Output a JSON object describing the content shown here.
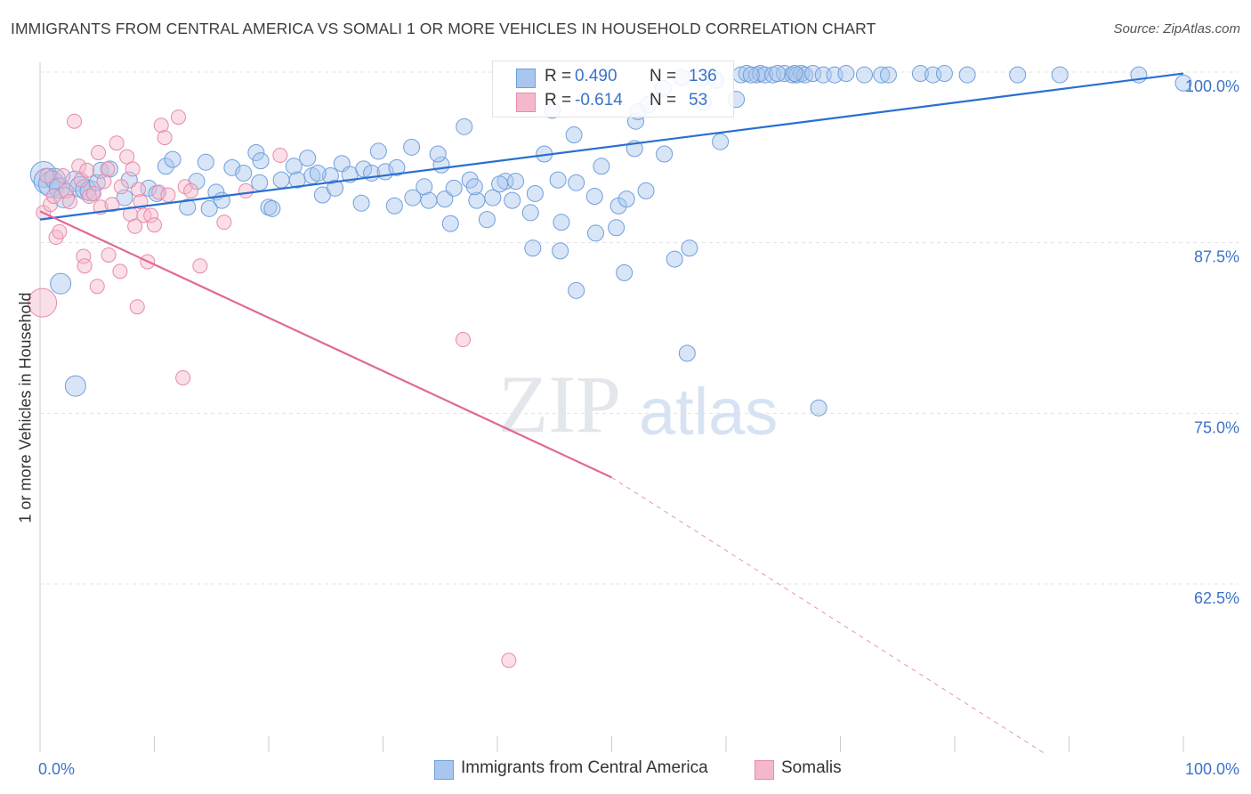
{
  "header": {
    "title": "IMMIGRANTS FROM CENTRAL AMERICA VS SOMALI 1 OR MORE VEHICLES IN HOUSEHOLD CORRELATION CHART",
    "source": "Source: ZipAtlas.com"
  },
  "watermark": {
    "zip": "ZIP",
    "atlas": "atlas"
  },
  "legend": {
    "r_label": "R =",
    "n_label": "N =",
    "series": [
      {
        "name": "Immigrants from Central America",
        "r": "0.490",
        "n": "136"
      },
      {
        "name": "Somalis",
        "r": "-0.614",
        "n": "53"
      }
    ]
  },
  "colors": {
    "blue_fill": "#a9c6ee",
    "blue_stroke": "#6f9fdc",
    "blue_line": "#2a6fd0",
    "pink_fill": "#f5b8cb",
    "pink_stroke": "#e88aa8",
    "pink_line": "#e06a96",
    "tick_label": "#3b73c9",
    "grid": "#dde3ea"
  },
  "chart_data": {
    "type": "scatter",
    "title": "IMMIGRANTS FROM CENTRAL AMERICA VS SOMALI 1 OR MORE VEHICLES IN HOUSEHOLD CORRELATION CHART",
    "xlabel": "",
    "ylabel": "1 or more Vehicles in Household",
    "x_tick_labels": [
      "0.0%",
      "100.0%"
    ],
    "y_tick_labels": [
      "100.0%",
      "87.5%",
      "75.0%",
      "62.5%"
    ],
    "y_ticks": [
      100.0,
      87.5,
      75.0,
      62.5
    ],
    "xlim": [
      0,
      100
    ],
    "ylim": [
      50.0,
      101.5
    ],
    "grid": true,
    "legend_position": "top-center",
    "series": [
      {
        "name": "Immigrants from Central America",
        "trend": {
          "x": [
            0,
            100
          ],
          "y": [
            89.2,
            99.9
          ]
        },
        "points": [
          [
            0.3,
            92.5,
            3
          ],
          [
            0.6,
            92.0,
            3
          ],
          [
            1.0,
            91.8,
            3
          ],
          [
            1.3,
            92.2,
            2
          ],
          [
            1.7,
            91.5,
            2
          ],
          [
            2.1,
            90.8,
            2
          ],
          [
            3.1,
            92.0,
            2
          ],
          [
            3.5,
            91.6,
            2
          ],
          [
            4.0,
            91.4,
            2
          ],
          [
            4.4,
            91.3,
            2
          ],
          [
            5.0,
            91.9,
            1
          ],
          [
            5.3,
            92.8,
            1
          ],
          [
            6.1,
            92.9,
            1
          ],
          [
            7.8,
            92.1,
            1
          ],
          [
            7.4,
            90.8,
            1
          ],
          [
            9.5,
            91.5,
            1
          ],
          [
            10.2,
            91.1,
            1
          ],
          [
            11.0,
            93.1,
            1
          ],
          [
            11.6,
            93.6,
            1
          ],
          [
            12.9,
            90.1,
            1
          ],
          [
            13.7,
            92.0,
            1
          ],
          [
            14.5,
            93.4,
            1
          ],
          [
            15.4,
            91.2,
            1
          ],
          [
            15.9,
            90.6,
            1
          ],
          [
            16.8,
            93.0,
            1
          ],
          [
            17.8,
            92.6,
            1
          ],
          [
            18.9,
            94.1,
            1
          ],
          [
            19.3,
            93.5,
            1
          ],
          [
            20.0,
            90.1,
            1
          ],
          [
            20.3,
            90.0,
            1
          ],
          [
            21.1,
            92.1,
            1
          ],
          [
            22.2,
            93.1,
            1
          ],
          [
            22.5,
            92.1,
            1
          ],
          [
            23.4,
            93.7,
            1
          ],
          [
            23.8,
            92.4,
            1
          ],
          [
            24.7,
            91.0,
            1
          ],
          [
            25.4,
            92.4,
            1
          ],
          [
            25.8,
            91.5,
            1
          ],
          [
            26.4,
            93.3,
            1
          ],
          [
            27.1,
            92.5,
            1
          ],
          [
            28.1,
            90.4,
            1
          ],
          [
            28.3,
            92.9,
            1
          ],
          [
            29.0,
            92.6,
            1
          ],
          [
            29.6,
            94.2,
            1
          ],
          [
            30.2,
            92.7,
            1
          ],
          [
            31.0,
            90.2,
            1
          ],
          [
            31.2,
            93.0,
            1
          ],
          [
            32.6,
            90.8,
            1
          ],
          [
            32.5,
            94.5,
            1
          ],
          [
            34.0,
            90.6,
            1
          ],
          [
            33.6,
            91.6,
            1
          ],
          [
            35.1,
            93.2,
            1
          ],
          [
            35.4,
            90.7,
            1
          ],
          [
            34.8,
            94.0,
            1
          ],
          [
            35.9,
            88.9,
            1
          ],
          [
            36.2,
            91.5,
            1
          ],
          [
            37.1,
            96.0,
            1
          ],
          [
            37.6,
            92.1,
            1
          ],
          [
            38.2,
            90.6,
            1
          ],
          [
            38.0,
            91.6,
            1
          ],
          [
            39.1,
            89.2,
            1
          ],
          [
            39.6,
            90.8,
            1
          ],
          [
            40.7,
            92.0,
            1
          ],
          [
            40.2,
            91.8,
            1
          ],
          [
            41.3,
            90.6,
            1
          ],
          [
            41.6,
            92.0,
            1
          ],
          [
            43.1,
            87.1,
            1
          ],
          [
            43.3,
            91.1,
            1
          ],
          [
            44.1,
            94.0,
            1
          ],
          [
            44.8,
            97.2,
            1
          ],
          [
            45.3,
            92.1,
            1
          ],
          [
            45.5,
            86.9,
            1
          ],
          [
            45.6,
            89.0,
            1
          ],
          [
            46.7,
            95.4,
            1
          ],
          [
            46.9,
            91.9,
            1
          ],
          [
            46.9,
            84.0,
            1
          ],
          [
            48.5,
            90.9,
            1
          ],
          [
            48.6,
            88.2,
            1
          ],
          [
            49.1,
            93.1,
            1
          ],
          [
            50.4,
            88.6,
            1
          ],
          [
            51.1,
            85.3,
            1
          ],
          [
            50.6,
            90.2,
            1
          ],
          [
            52.0,
            94.4,
            1
          ],
          [
            52.1,
            96.4,
            1
          ],
          [
            53.2,
            97.6,
            1
          ],
          [
            52.3,
            97.1,
            1
          ],
          [
            54.6,
            94.0,
            1
          ],
          [
            54.5,
            98.8,
            1
          ],
          [
            56.1,
            99.6,
            1
          ],
          [
            56.8,
            87.1,
            1
          ],
          [
            56.6,
            79.4,
            1
          ],
          [
            58.0,
            97.8,
            1
          ],
          [
            57.9,
            99.6,
            1
          ],
          [
            59.1,
            99.4,
            1
          ],
          [
            59.5,
            94.9,
            1
          ],
          [
            60.9,
            98.0,
            1
          ],
          [
            61.3,
            99.8,
            1
          ],
          [
            61.8,
            99.9,
            1
          ],
          [
            62.7,
            99.8,
            1
          ],
          [
            63.0,
            99.9,
            1
          ],
          [
            63.4,
            99.8,
            1
          ],
          [
            64.1,
            99.8,
            1
          ],
          [
            65.1,
            99.9,
            1
          ],
          [
            65.8,
            99.8,
            1
          ],
          [
            66.2,
            99.8,
            1
          ],
          [
            66.6,
            99.9,
            1
          ],
          [
            66.9,
            99.8,
            1
          ],
          [
            67.6,
            99.9,
            1
          ],
          [
            66.0,
            99.9,
            1
          ],
          [
            64.5,
            99.9,
            1
          ],
          [
            62.2,
            99.8,
            1
          ],
          [
            68.1,
            75.4,
            1
          ],
          [
            68.5,
            99.8,
            1
          ],
          [
            69.5,
            99.8,
            1
          ],
          [
            70.5,
            99.9,
            1
          ],
          [
            72.1,
            99.8,
            1
          ],
          [
            73.6,
            99.8,
            1
          ],
          [
            74.2,
            99.8,
            1
          ],
          [
            77.0,
            99.9,
            1
          ],
          [
            78.1,
            99.8,
            1
          ],
          [
            79.1,
            99.9,
            1
          ],
          [
            81.1,
            99.8,
            1
          ],
          [
            85.5,
            99.8,
            1
          ],
          [
            89.2,
            99.8,
            1
          ],
          [
            96.1,
            99.8,
            1
          ],
          [
            100.0,
            99.2,
            1
          ],
          [
            1.8,
            84.5,
            2
          ],
          [
            3.1,
            77.0,
            2
          ],
          [
            14.8,
            90.0,
            1
          ],
          [
            42.9,
            89.7,
            1
          ],
          [
            53.0,
            91.3,
            1
          ],
          [
            51.3,
            90.7,
            1
          ],
          [
            55.5,
            86.3,
            1
          ],
          [
            19.2,
            91.9,
            1
          ],
          [
            24.3,
            92.6,
            1
          ]
        ]
      },
      {
        "name": "Somalis",
        "trend": {
          "x": [
            0,
            50
          ],
          "y": [
            89.8,
            70.3
          ]
        },
        "trend_dashed": {
          "x": [
            50,
            88
          ],
          "y": [
            70.3,
            50.0
          ]
        },
        "points": [
          [
            0.2,
            83.1,
            4
          ],
          [
            0.3,
            89.7,
            1
          ],
          [
            0.6,
            92.4,
            1
          ],
          [
            0.9,
            90.3,
            1
          ],
          [
            1.2,
            90.9,
            1
          ],
          [
            1.4,
            87.9,
            1
          ],
          [
            1.7,
            88.3,
            1
          ],
          [
            2.0,
            92.4,
            1
          ],
          [
            2.3,
            91.3,
            1
          ],
          [
            2.6,
            90.5,
            1
          ],
          [
            3.0,
            96.4,
            1
          ],
          [
            3.4,
            93.1,
            1
          ],
          [
            3.6,
            92.1,
            1
          ],
          [
            3.8,
            86.5,
            1
          ],
          [
            4.1,
            92.8,
            1
          ],
          [
            4.3,
            90.9,
            1
          ],
          [
            4.7,
            91.1,
            1
          ],
          [
            5.1,
            94.1,
            1
          ],
          [
            5.3,
            90.1,
            1
          ],
          [
            5.6,
            92.0,
            1
          ],
          [
            5.9,
            92.9,
            1
          ],
          [
            6.0,
            86.6,
            1
          ],
          [
            6.3,
            90.3,
            1
          ],
          [
            6.7,
            94.8,
            1
          ],
          [
            7.1,
            91.6,
            1
          ],
          [
            7.6,
            93.8,
            1
          ],
          [
            7.9,
            89.6,
            1
          ],
          [
            8.1,
            92.9,
            1
          ],
          [
            8.3,
            88.7,
            1
          ],
          [
            8.6,
            91.4,
            1
          ],
          [
            8.8,
            90.5,
            1
          ],
          [
            9.1,
            89.5,
            1
          ],
          [
            9.4,
            86.1,
            1
          ],
          [
            9.7,
            89.5,
            1
          ],
          [
            10.0,
            88.8,
            1
          ],
          [
            10.4,
            91.2,
            1
          ],
          [
            10.6,
            96.1,
            1
          ],
          [
            10.9,
            95.2,
            1
          ],
          [
            11.2,
            91.0,
            1
          ],
          [
            12.1,
            96.7,
            1
          ],
          [
            12.7,
            91.6,
            1
          ],
          [
            13.2,
            91.3,
            1
          ],
          [
            14.0,
            85.8,
            1
          ],
          [
            3.9,
            85.8,
            1
          ],
          [
            7.0,
            85.4,
            1
          ],
          [
            5.0,
            84.3,
            1
          ],
          [
            16.1,
            89.0,
            1
          ],
          [
            18.0,
            91.3,
            1
          ],
          [
            21.0,
            93.9,
            1
          ],
          [
            8.5,
            82.8,
            1
          ],
          [
            12.5,
            77.6,
            1
          ],
          [
            37.0,
            80.4,
            1
          ],
          [
            41.0,
            56.9,
            1
          ]
        ]
      }
    ]
  }
}
